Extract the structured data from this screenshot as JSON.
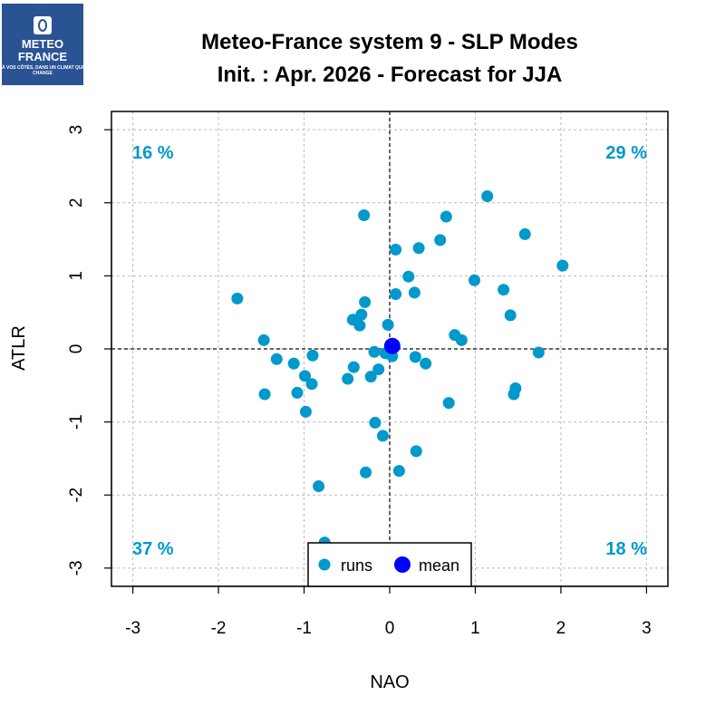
{
  "logo": {
    "line1": "METEO",
    "line2": "FRANCE",
    "tagline": "À VOS CÔTÉS, DANS UN CLIMAT QUI CHANGE",
    "bg_color": "#2a5394"
  },
  "chart_data": {
    "type": "scatter",
    "title": "Meteo-France system 9 - SLP Modes",
    "subtitle": "Init. : Apr. 2026 - Forecast for JJA",
    "xlabel": "NAO",
    "ylabel": "ATLR",
    "xlim": [
      -3.25,
      3.25
    ],
    "ylim": [
      -3.25,
      3.25
    ],
    "xticks": [
      -3,
      -2,
      -1,
      0,
      1,
      2,
      3
    ],
    "yticks": [
      -3,
      -2,
      -1,
      0,
      1,
      2,
      3
    ],
    "grid": true,
    "legend_position": "bottom-center",
    "quadrant_percentages": {
      "top_left": "16 %",
      "top_right": "29 %",
      "bottom_left": "37 %",
      "bottom_right": "18 %"
    },
    "series": [
      {
        "name": "runs",
        "color": "#0099cc",
        "points": [
          [
            1.14,
            2.09
          ],
          [
            -0.3,
            1.83
          ],
          [
            0.66,
            1.81
          ],
          [
            1.58,
            1.57
          ],
          [
            0.59,
            1.49
          ],
          [
            0.07,
            1.36
          ],
          [
            0.34,
            1.38
          ],
          [
            2.02,
            1.14
          ],
          [
            0.22,
            0.99
          ],
          [
            0.99,
            0.94
          ],
          [
            0.29,
            0.77
          ],
          [
            0.07,
            0.75
          ],
          [
            1.33,
            0.81
          ],
          [
            -1.78,
            0.69
          ],
          [
            -0.29,
            0.64
          ],
          [
            -0.33,
            0.47
          ],
          [
            1.41,
            0.46
          ],
          [
            -0.43,
            0.4
          ],
          [
            -0.35,
            0.32
          ],
          [
            -0.02,
            0.33
          ],
          [
            0.76,
            0.19
          ],
          [
            0.84,
            0.12
          ],
          [
            -1.47,
            0.12
          ],
          [
            1.74,
            -0.05
          ],
          [
            -0.18,
            -0.04
          ],
          [
            -0.05,
            -0.06
          ],
          [
            0.03,
            -0.1
          ],
          [
            -0.9,
            -0.09
          ],
          [
            -1.32,
            -0.14
          ],
          [
            0.3,
            -0.11
          ],
          [
            0.42,
            -0.2
          ],
          [
            -1.12,
            -0.2
          ],
          [
            -0.42,
            -0.25
          ],
          [
            -0.13,
            -0.28
          ],
          [
            -0.99,
            -0.37
          ],
          [
            -0.22,
            -0.38
          ],
          [
            -0.49,
            -0.41
          ],
          [
            -0.91,
            -0.48
          ],
          [
            1.47,
            -0.54
          ],
          [
            1.45,
            -0.62
          ],
          [
            -1.46,
            -0.62
          ],
          [
            -1.08,
            -0.6
          ],
          [
            0.69,
            -0.74
          ],
          [
            -0.98,
            -0.86
          ],
          [
            -0.17,
            -1.01
          ],
          [
            -0.08,
            -1.19
          ],
          [
            0.31,
            -1.4
          ],
          [
            -0.28,
            -1.69
          ],
          [
            0.11,
            -1.67
          ],
          [
            -0.83,
            -1.88
          ],
          [
            -0.76,
            -2.65
          ]
        ]
      },
      {
        "name": "mean",
        "color": "#0000ff",
        "points": [
          [
            0.03,
            0.04
          ]
        ]
      }
    ],
    "legend": [
      {
        "label": "runs",
        "color": "#0099cc"
      },
      {
        "label": "mean",
        "color": "#0000ff"
      }
    ]
  }
}
